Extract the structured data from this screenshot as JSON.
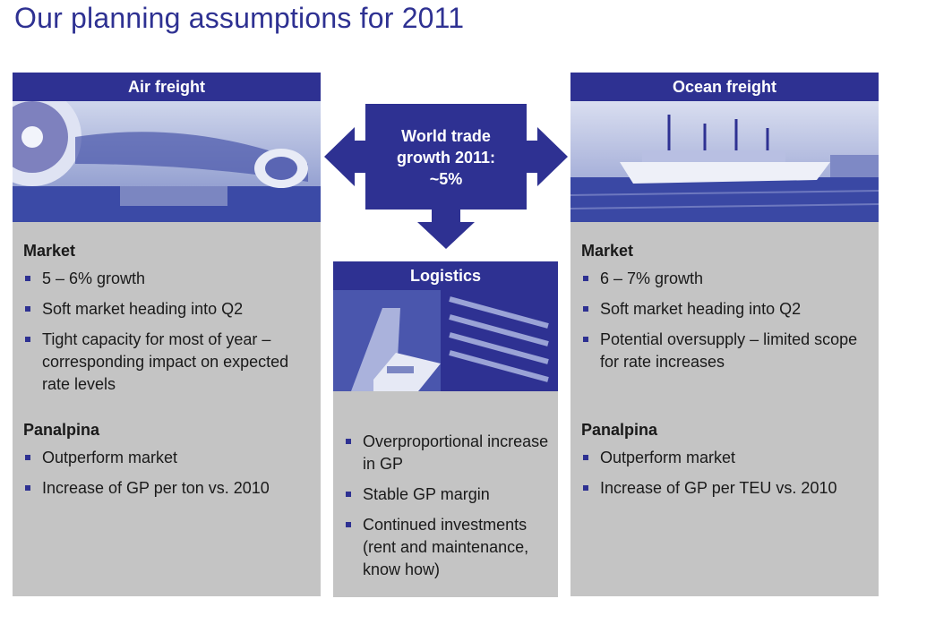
{
  "title": "Our planning assumptions for 2011",
  "center": {
    "line1": "World trade",
    "line2": "growth 2011:",
    "line3": "~5%"
  },
  "air": {
    "header": "Air freight",
    "market_title": "Market",
    "market_items": [
      "5 – 6% growth",
      "Soft market heading into Q2",
      "Tight capacity for most of year – corresponding impact on expected rate levels"
    ],
    "panalpina_title": "Panalpina",
    "panalpina_items": [
      "Outperform market",
      "Increase of GP per ton vs. 2010"
    ]
  },
  "logistics": {
    "header": "Logistics",
    "items": [
      "Overproportional increase in GP",
      "Stable GP margin",
      "Continued investments (rent and maintenance, know how)"
    ]
  },
  "ocean": {
    "header": "Ocean freight",
    "market_title": "Market",
    "market_items": [
      "6 – 7% growth",
      "Soft market heading into Q2",
      "Potential oversupply – limited scope for rate increases"
    ],
    "panalpina_title": "Panalpina",
    "panalpina_items": [
      "Outperform market",
      "Increase of GP per TEU vs. 2010"
    ]
  },
  "colors": {
    "brand": "#2e3192",
    "panel": "#c4c4c4"
  }
}
